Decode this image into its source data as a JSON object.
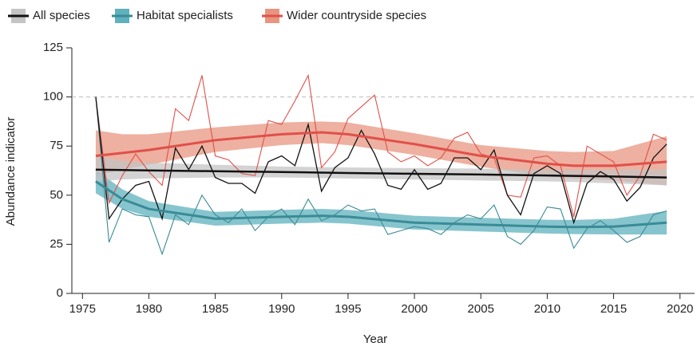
{
  "chart_data": {
    "type": "line",
    "x_label": "Year",
    "y_label": "Abundance indicator",
    "x": [
      1976,
      1977,
      1978,
      1979,
      1980,
      1981,
      1982,
      1983,
      1984,
      1985,
      1986,
      1987,
      1988,
      1989,
      1990,
      1991,
      1992,
      1993,
      1994,
      1995,
      1996,
      1997,
      1998,
      1999,
      2000,
      2001,
      2002,
      2003,
      2004,
      2005,
      2006,
      2007,
      2008,
      2009,
      2010,
      2011,
      2012,
      2013,
      2014,
      2015,
      2016,
      2017,
      2018,
      2019
    ],
    "trend_x": [
      1976,
      1978,
      1980,
      1985,
      1990,
      1993,
      1995,
      2000,
      2005,
      2010,
      2012,
      2015,
      2019
    ],
    "series": [
      {
        "name": "All species",
        "color": "#111111",
        "band_color": "#c4c4c4",
        "values": [
          100,
          38,
          48,
          55,
          57,
          38,
          74,
          63,
          75,
          59,
          56,
          56,
          51,
          67,
          70,
          65,
          86,
          52,
          64,
          69,
          83,
          71,
          55,
          53,
          63,
          53,
          56,
          69,
          69,
          63,
          73,
          50,
          40,
          61,
          65,
          61,
          36,
          56,
          62,
          58,
          47,
          54,
          69,
          76
        ],
        "trend": [
          63,
          62.8,
          62.6,
          62.2,
          61.8,
          61.5,
          61.3,
          60.9,
          60.5,
          60,
          59.8,
          59.5,
          59
        ],
        "trend_lower": [
          57,
          58,
          58.5,
          59,
          59,
          58.7,
          58.5,
          58,
          57.5,
          57,
          56.7,
          56,
          55
        ],
        "trend_upper": [
          70,
          67.5,
          66.5,
          65.5,
          64.6,
          64.3,
          64.1,
          63.8,
          63.5,
          63,
          62.9,
          63,
          63
        ]
      },
      {
        "name": "Habitat specialists",
        "color": "#3a8b96",
        "band_color": "#5fb1bd",
        "values": [
          100,
          26,
          43,
          40,
          39,
          20,
          40,
          35,
          50,
          40,
          36,
          43,
          32,
          39,
          43,
          35,
          48,
          37,
          40,
          45,
          42,
          43,
          30,
          32,
          34,
          33,
          30,
          36,
          40,
          38,
          45,
          29,
          25,
          32,
          44,
          43,
          23,
          33,
          37,
          32,
          26,
          29,
          40,
          42
        ],
        "trend": [
          57,
          48,
          43,
          38,
          39,
          39.5,
          39,
          36,
          35,
          34,
          33.8,
          34,
          36
        ],
        "trend_lower": [
          51,
          43,
          39,
          34.5,
          35.5,
          36,
          35.5,
          32.5,
          31.5,
          30.5,
          30.2,
          30,
          30
        ],
        "trend_upper": [
          63,
          53,
          47,
          41.5,
          42.5,
          43,
          42.5,
          39.5,
          38.5,
          37.5,
          37.4,
          38,
          42
        ]
      },
      {
        "name": "Wider countryside species",
        "color": "#e0504a",
        "band_color": "#e89580",
        "values": [
          100,
          46,
          60,
          71,
          62,
          55,
          94,
          88,
          111,
          70,
          68,
          61,
          60,
          88,
          86,
          98,
          111,
          64,
          72,
          89,
          95,
          101,
          72,
          67,
          70,
          65,
          69,
          79,
          82,
          71,
          69,
          50,
          49,
          69,
          70,
          65,
          39,
          75,
          71,
          67,
          50,
          60,
          81,
          78
        ],
        "trend": [
          70,
          71.5,
          73,
          78,
          81,
          82,
          81,
          76,
          70,
          66,
          65,
          65,
          67
        ],
        "trend_lower": [
          60,
          63,
          65.5,
          72,
          75.5,
          76.5,
          75.5,
          70.5,
          64.5,
          59.5,
          58.5,
          57.5,
          55
        ],
        "trend_upper": [
          83,
          81,
          81,
          84.5,
          87,
          87.5,
          87,
          81.5,
          75.5,
          72.5,
          72,
          72.5,
          80
        ]
      }
    ],
    "reference_line": 100,
    "xlim": [
      1974.2,
      2021.1
    ],
    "ylim": [
      0,
      125
    ],
    "xticks": [
      1975,
      1980,
      1985,
      1990,
      1995,
      2000,
      2005,
      2010,
      2015,
      2020
    ],
    "yticks": [
      0,
      25,
      50,
      75,
      100,
      125
    ]
  }
}
